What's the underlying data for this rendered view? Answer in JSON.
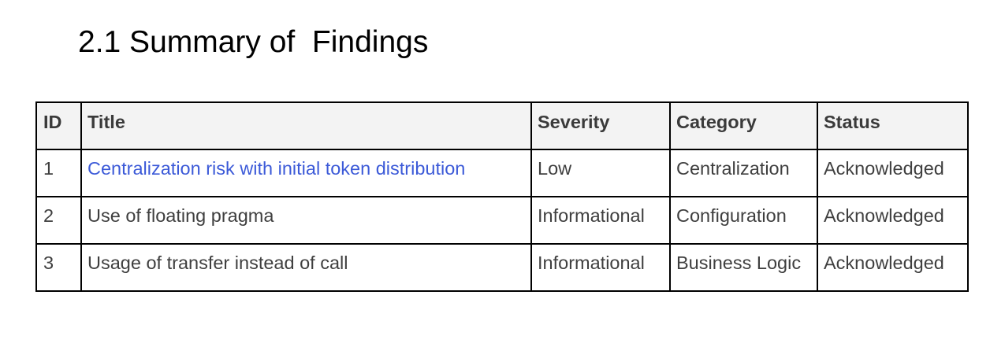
{
  "section": {
    "title": "2.1 Summary of  Findings"
  },
  "table": {
    "headers": {
      "id": "ID",
      "title": "Title",
      "severity": "Severity",
      "category": "Category",
      "status": "Status"
    },
    "rows": [
      {
        "id": "1",
        "title": "Centralization risk with initial token distribution",
        "severity": "Low",
        "category": "Centralization",
        "status": "Acknowledged"
      },
      {
        "id": "2",
        "title": "Use of floating pragma",
        "severity": "Informational",
        "category": "Configuration",
        "status": "Acknowledged"
      },
      {
        "id": "3",
        "title": "Usage of transfer instead of call",
        "severity": "Informational",
        "category": "Business Logic",
        "status": "Acknowledged"
      }
    ]
  },
  "colors": {
    "link": "#3c5ad8",
    "header_bg": "#f3f3f3",
    "border": "#000000"
  }
}
